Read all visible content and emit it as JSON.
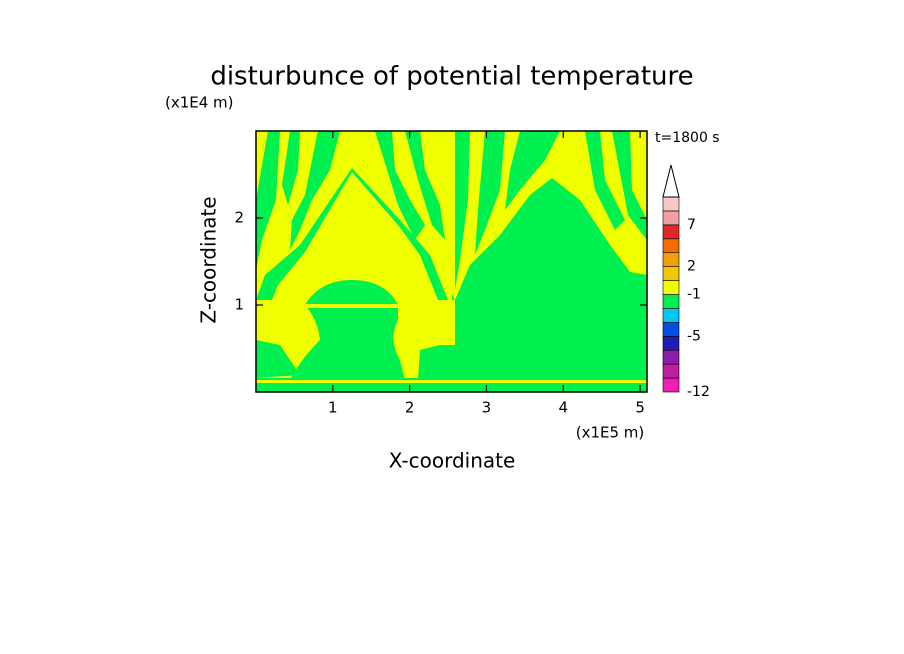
{
  "chart_data": {
    "type": "contour",
    "title": "disturbunce of potential temperature",
    "x_label": "X-coordinate",
    "y_label": "Z-coordinate",
    "x_unit": "(x1E5 m)",
    "y_unit": "(x1E4 m)",
    "annotation": "t=1800 s",
    "xlim": [
      0,
      5.09
    ],
    "xticks": [
      1,
      2,
      3,
      4,
      5
    ],
    "ylim": [
      0,
      3
    ],
    "yticks": [
      1,
      2
    ],
    "colorbar": {
      "levels": [
        -12,
        -10,
        -8,
        -6,
        -5,
        -4,
        -2,
        -1,
        1,
        2,
        3,
        5,
        7,
        8,
        9
      ],
      "colors": [
        "#f01eb4",
        "#c01ea0",
        "#8c1eaa",
        "#1e1eb4",
        "#0050e6",
        "#00c8f0",
        "#00f050",
        "#f0ff00",
        "#f0c800",
        "#f0a000",
        "#f06e00",
        "#e02828",
        "#f0a0a0",
        "#f8c8c8"
      ],
      "ticks": [
        -12,
        -5,
        -1,
        2,
        7
      ]
    }
  }
}
